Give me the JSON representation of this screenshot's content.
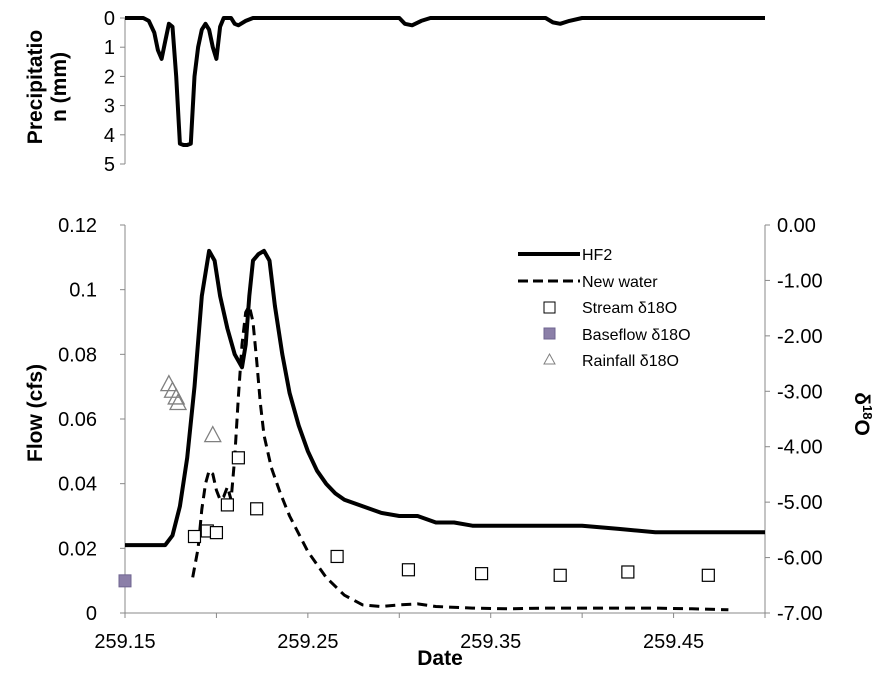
{
  "chart_data": [
    {
      "type": "area",
      "ylabel_lines": [
        "Precipitatio",
        "n (mm)"
      ],
      "ylim": [
        0,
        5
      ],
      "inverted_y": true,
      "yticks": [
        "0",
        "1",
        "2",
        "3",
        "4",
        "5"
      ],
      "xlim": [
        259.15,
        259.5
      ],
      "x": [
        259.15,
        259.16,
        259.163,
        259.166,
        259.168,
        259.17,
        259.172,
        259.174,
        259.176,
        259.178,
        259.18,
        259.182,
        259.184,
        259.186,
        259.188,
        259.19,
        259.192,
        259.194,
        259.196,
        259.198,
        259.2,
        259.202,
        259.204,
        259.206,
        259.208,
        259.21,
        259.212,
        259.216,
        259.22,
        259.225,
        259.3,
        259.303,
        259.307,
        259.312,
        259.317,
        259.38,
        259.384,
        259.388,
        259.393,
        259.4,
        259.5
      ],
      "values": [
        0,
        0,
        0.1,
        0.5,
        1.1,
        1.4,
        0.8,
        0.2,
        0.3,
        2.0,
        4.3,
        4.35,
        4.35,
        4.3,
        2.0,
        1.0,
        0.4,
        0.2,
        0.4,
        1.0,
        1.4,
        0.3,
        0,
        0,
        0,
        0.2,
        0.25,
        0.1,
        0,
        0,
        0,
        0.2,
        0.25,
        0.1,
        0,
        0,
        0.15,
        0.2,
        0.1,
        0,
        0
      ]
    },
    {
      "type": "line",
      "xlabel": "Date",
      "ylabel": "Flow (cfs)",
      "y2label": "δ",
      "y2label_sup": "18",
      "y2label_tail": "O",
      "xlim": [
        259.15,
        259.5
      ],
      "ylim": [
        0,
        0.12
      ],
      "y2lim": [
        -7.0,
        0.0
      ],
      "xticks": [
        "259.15",
        "259.25",
        "259.35",
        "259.45"
      ],
      "yticks": [
        "0",
        "0.02",
        "0.04",
        "0.06",
        "0.08",
        "0.1",
        "0.12"
      ],
      "y2ticks": [
        "0.00",
        "-1.00",
        "-2.00",
        "-3.00",
        "-4.00",
        "-5.00",
        "-6.00",
        "-7.00"
      ],
      "legend_position": "top-right",
      "series": [
        {
          "name": "HF2",
          "style": "solid",
          "axis": "left",
          "color": "#000000",
          "x": [
            259.15,
            259.172,
            259.176,
            259.18,
            259.184,
            259.188,
            259.192,
            259.196,
            259.199,
            259.202,
            259.206,
            259.21,
            259.214,
            259.216,
            259.218,
            259.22,
            259.223,
            259.226,
            259.229,
            259.232,
            259.236,
            259.24,
            259.245,
            259.25,
            259.255,
            259.26,
            259.265,
            259.27,
            259.28,
            259.29,
            259.3,
            259.31,
            259.32,
            259.33,
            259.34,
            259.35,
            259.36,
            259.38,
            259.4,
            259.42,
            259.44,
            259.46,
            259.48,
            259.5
          ],
          "values": [
            0.021,
            0.021,
            0.024,
            0.033,
            0.048,
            0.07,
            0.098,
            0.112,
            0.109,
            0.098,
            0.088,
            0.08,
            0.076,
            0.083,
            0.098,
            0.109,
            0.111,
            0.112,
            0.109,
            0.095,
            0.08,
            0.068,
            0.058,
            0.05,
            0.044,
            0.04,
            0.037,
            0.035,
            0.033,
            0.031,
            0.03,
            0.03,
            0.028,
            0.028,
            0.027,
            0.027,
            0.027,
            0.027,
            0.027,
            0.026,
            0.025,
            0.025,
            0.025,
            0.025
          ]
        },
        {
          "name": "New water",
          "style": "dashed",
          "axis": "left",
          "color": "#000000",
          "x": [
            259.187,
            259.19,
            259.192,
            259.194,
            259.196,
            259.198,
            259.2,
            259.202,
            259.204,
            259.206,
            259.208,
            259.21,
            259.212,
            259.214,
            259.216,
            259.218,
            259.22,
            259.222,
            259.224,
            259.226,
            259.23,
            259.235,
            259.24,
            259.25,
            259.26,
            259.27,
            259.28,
            259.29,
            259.3,
            259.31,
            259.32,
            259.34,
            259.36,
            259.38,
            259.4,
            259.42,
            259.44,
            259.46,
            259.48
          ],
          "values": [
            0.011,
            0.02,
            0.032,
            0.04,
            0.044,
            0.043,
            0.038,
            0.035,
            0.036,
            0.039,
            0.035,
            0.048,
            0.067,
            0.083,
            0.093,
            0.095,
            0.09,
            0.078,
            0.065,
            0.055,
            0.045,
            0.037,
            0.03,
            0.019,
            0.011,
            0.0055,
            0.0025,
            0.002,
            0.0025,
            0.0028,
            0.002,
            0.0015,
            0.0013,
            0.0015,
            0.0015,
            0.0015,
            0.0015,
            0.0013,
            0.001
          ]
        },
        {
          "name": "Stream δ18O",
          "marker": "open-square",
          "axis": "right",
          "color": "#000000",
          "x": [
            259.188,
            259.195,
            259.2,
            259.206,
            259.212,
            259.222,
            259.266,
            259.305,
            259.345,
            259.388,
            259.425,
            259.469
          ],
          "values": [
            -5.62,
            -5.52,
            -5.55,
            -5.05,
            -4.2,
            -5.12,
            -5.98,
            -6.22,
            -6.29,
            -6.32,
            -6.26,
            -6.32
          ]
        },
        {
          "name": "Baseflow δ18O",
          "marker": "filled-square",
          "axis": "right",
          "color": "#8b7fa8",
          "x": [
            259.15
          ],
          "values": [
            -6.42
          ]
        },
        {
          "name": "Rainfall δ18O",
          "marker": "open-triangle",
          "axis": "right",
          "color": "#808080",
          "x": [
            259.174,
            259.176,
            259.178,
            259.179,
            259.198
          ],
          "values": [
            -2.88,
            -3.0,
            -3.12,
            -3.22,
            -3.8
          ]
        }
      ]
    }
  ]
}
